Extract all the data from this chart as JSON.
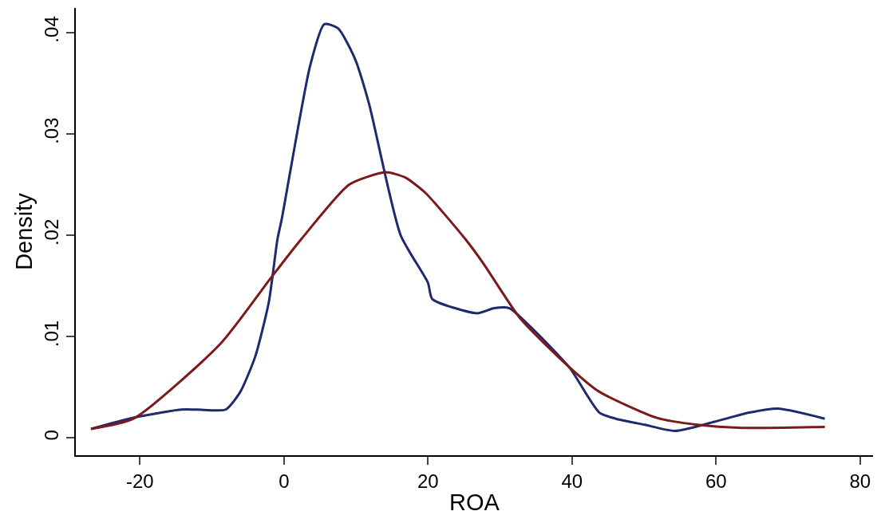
{
  "chart_data": {
    "type": "line",
    "xlabel": "ROA",
    "ylabel": "Density",
    "marker": "none",
    "line_style": "solid",
    "xlim": [
      -28.9,
      81.8
    ],
    "ylim": [
      -0.0017,
      0.0424
    ],
    "xticks": [
      -20,
      0,
      20,
      40,
      60,
      80
    ],
    "yticks": [
      {
        "value": 0,
        "label": "0"
      },
      {
        "value": 0.01,
        "label": ".01"
      },
      {
        "value": 0.02,
        "label": ".02"
      },
      {
        "value": 0.03,
        "label": ".03"
      },
      {
        "value": 0.04,
        "label": ".04"
      }
    ],
    "series": [
      {
        "color": "#1f2a6e",
        "x": [
          -26.8,
          -20.9,
          -14.3,
          -12,
          -8.1,
          -6.1,
          -4.0,
          -2.1,
          -0.9,
          -0.3,
          3.6,
          5.6,
          7.5,
          9.8,
          11.8,
          16.2,
          20,
          20.6,
          26.8,
          29.2,
          31.3,
          34.9,
          39.7,
          43.8,
          46.1,
          50.1,
          54.3,
          59.8,
          64.6,
          68.6,
          75.1
        ],
        "values": [
          0.0009,
          0.002,
          0.0028,
          0.0028,
          0.0028,
          0.0045,
          0.008,
          0.0134,
          0.0196,
          0.0216,
          0.0366,
          0.0408,
          0.0404,
          0.0375,
          0.033,
          0.02,
          0.0153,
          0.0137,
          0.0123,
          0.0128,
          0.0128,
          0.0105,
          0.0069,
          0.0025,
          0.0019,
          0.0013,
          0.0007,
          0.0016,
          0.0025,
          0.0029,
          0.0019
        ]
      },
      {
        "color": "#7a1a1a",
        "x": [
          -26.8,
          -20.9,
          -8.8,
          -1.9,
          2.4,
          9.1,
          14.1,
          16.8,
          19.6,
          25.2,
          27.7,
          32.8,
          39.3,
          43.7,
          51.7,
          57.4,
          63.7,
          75.1
        ],
        "values": [
          0.0009,
          0.0019,
          0.0093,
          0.0157,
          0.0196,
          0.025,
          0.0262,
          0.0257,
          0.0242,
          0.0196,
          0.0172,
          0.0118,
          0.0072,
          0.0046,
          0.002,
          0.0013,
          0.001,
          0.0011
        ]
      }
    ]
  }
}
